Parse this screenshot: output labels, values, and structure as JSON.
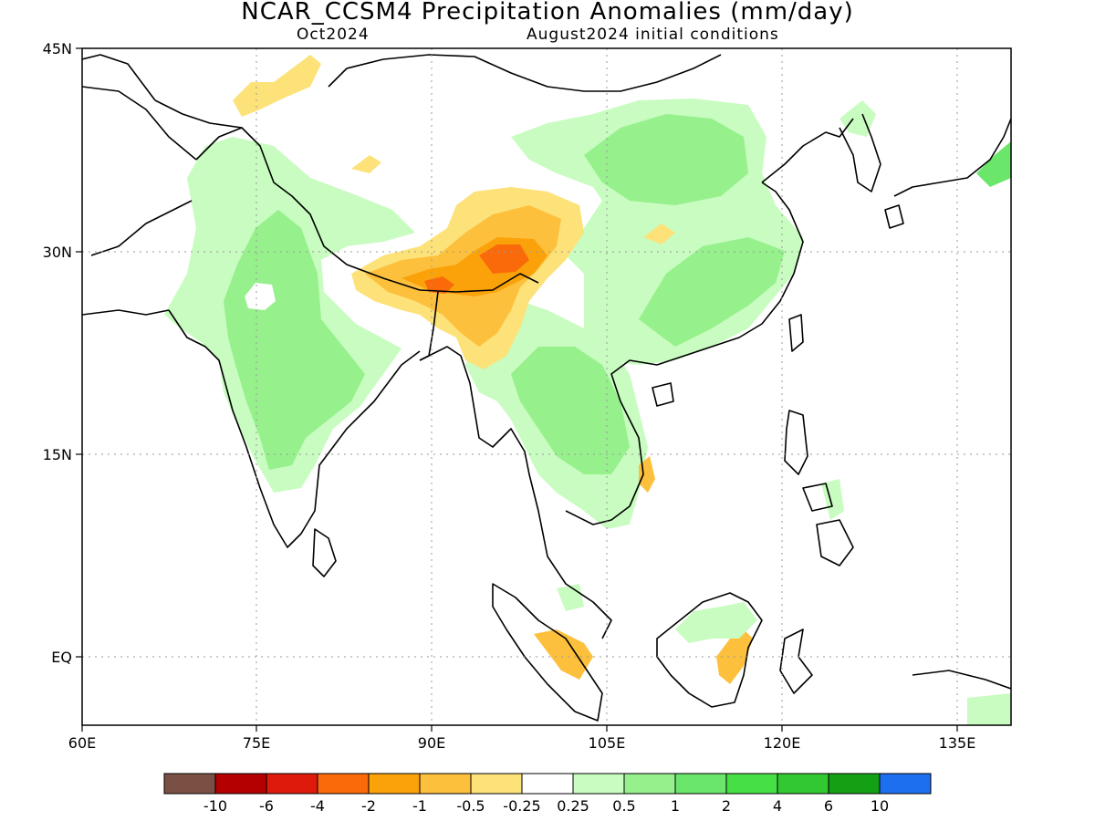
{
  "title": "NCAR_CCSM4 Precipitation Anomalies (mm/day)",
  "valid_month": "Oct2024",
  "init_label": "August2024 initial conditions",
  "map": {
    "lon_ticks": [
      "60E",
      "75E",
      "90E",
      "105E",
      "120E",
      "135E"
    ],
    "lat_ticks": [
      "45N",
      "30N",
      "15N",
      "EQ"
    ],
    "lon_range": [
      60,
      140
    ],
    "lat_range": [
      -5,
      45
    ],
    "grid_lines": "dotted"
  },
  "colorbar": {
    "labels": [
      "-10",
      "-6",
      "-4",
      "-2",
      "-1",
      "-0.5",
      "-0.25",
      "0.25",
      "0.5",
      "1",
      "2",
      "4",
      "6",
      "10"
    ],
    "colors": [
      "#7b5044",
      "#b40000",
      "#de1a0a",
      "#fa6a0a",
      "#fba20a",
      "#fdc03c",
      "#fde27a",
      "#ffffff",
      "#c8fcc0",
      "#96f08c",
      "#6ae66a",
      "#46e046",
      "#32c832",
      "#14a014",
      "#1e6ef0"
    ]
  },
  "colors": {
    "dry_light": "#fde27a",
    "dry_mid": "#fdc03c",
    "dry_strong": "#fba20a",
    "dry_max": "#fa6a0a",
    "wet_light": "#c8fcc0",
    "wet_mid": "#96f08c",
    "wet_strong": "#6ae66a"
  }
}
